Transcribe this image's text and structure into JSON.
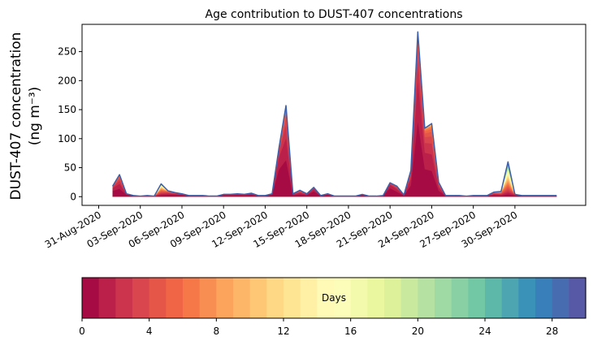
{
  "chart_data": {
    "type": "area",
    "title": "Age contribution to DUST-407 concentrations",
    "ylabel_line1": "DUST-407 concentration",
    "ylabel_line2": "(ng m⁻³)",
    "xlabel": "",
    "ylim": [
      -15,
      297
    ],
    "yticks": [
      0,
      50,
      100,
      150,
      200,
      250
    ],
    "xlim": [
      -1.2,
      35.1
    ],
    "xticks": [
      0,
      3,
      6,
      9,
      12,
      15,
      18,
      21,
      24,
      27,
      30
    ],
    "xtick_labels": [
      "31-Aug-2020",
      "03-Sep-2020",
      "06-Sep-2020",
      "09-Sep-2020",
      "12-Sep-2020",
      "15-Sep-2020",
      "18-Sep-2020",
      "21-Sep-2020",
      "24-Sep-2020",
      "27-Sep-2020",
      "30-Sep-2020"
    ],
    "x": [
      1,
      1.5,
      2,
      2.5,
      3,
      3.5,
      4,
      4.5,
      5,
      5.5,
      6,
      6.5,
      7,
      7.5,
      8,
      8.5,
      9,
      9.5,
      10,
      10.5,
      11,
      11.5,
      12,
      12.5,
      13,
      13.5,
      14,
      14.5,
      15,
      15.5,
      16,
      16.5,
      17,
      17.5,
      18,
      18.5,
      19,
      19.5,
      20,
      20.5,
      21,
      21.5,
      22,
      22.5,
      23,
      23.5,
      24,
      24.5,
      25,
      25.5,
      26,
      26.5,
      27,
      27.5,
      28,
      28.5,
      29,
      29.5,
      30,
      30.5,
      31,
      31.5,
      32,
      32.5,
      33
    ],
    "total": [
      18,
      38,
      5,
      2,
      1,
      2,
      1,
      22,
      10,
      7,
      5,
      2,
      2,
      2,
      1,
      1,
      4,
      4,
      5,
      4,
      6,
      2,
      2,
      5,
      85,
      157,
      5,
      11,
      5,
      16,
      2,
      5,
      1,
      1,
      1,
      1,
      4,
      1,
      1,
      2,
      24,
      18,
      3,
      45,
      284,
      118,
      126,
      25,
      2,
      2,
      2,
      1,
      2,
      2,
      2,
      8,
      9,
      60,
      4,
      2,
      2,
      2,
      2,
      2,
      2
    ],
    "fresh_share": [
      0.55,
      0.35,
      0.6,
      0.6,
      0.6,
      0.6,
      0.6,
      0.1,
      0.3,
      0.4,
      0.5,
      0.6,
      0.6,
      0.6,
      0.6,
      0.6,
      0.55,
      0.55,
      0.5,
      0.55,
      0.5,
      0.6,
      0.6,
      0.55,
      0.55,
      0.4,
      0.5,
      0.35,
      0.5,
      0.55,
      0.6,
      0.55,
      0.6,
      0.6,
      0.6,
      0.6,
      0.55,
      0.6,
      0.6,
      0.6,
      0.6,
      0.45,
      0.6,
      0.42,
      0.45,
      0.4,
      0.35,
      0.4,
      0.6,
      0.6,
      0.6,
      0.6,
      0.6,
      0.6,
      0.6,
      0.3,
      0.2,
      0.05,
      0.5,
      0.6,
      0.6,
      0.6,
      0.6,
      0.6,
      0.6
    ],
    "colorbar": {
      "label": "Days",
      "min": 0,
      "max": 30,
      "bins": 30,
      "ticks": [
        0,
        4,
        8,
        12,
        16,
        20,
        24,
        28
      ]
    },
    "colors": {
      "outline": "#3d5ea8",
      "palette": [
        "#9e0142",
        "#d53e4f",
        "#f46d43",
        "#fdae61",
        "#fee08b",
        "#ffffbf",
        "#e6f598",
        "#abdda4",
        "#66c2a5",
        "#3288bd",
        "#5e4fa2"
      ]
    }
  }
}
